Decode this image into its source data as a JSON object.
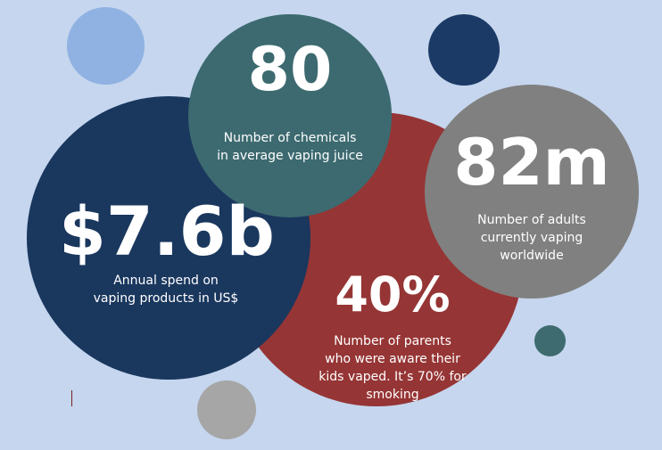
{
  "colors": {
    "background": "#c5d6ee",
    "navy": "#1a375e",
    "teal": "#3c6a70",
    "red": "#963535",
    "gray": "#808080",
    "light_blue": "#8fb2e2",
    "light_gray": "#a6a6a6",
    "text": "#ffffff"
  },
  "stats": {
    "chemicals": {
      "value": "80",
      "label_line1": "Number of chemicals",
      "label_line2": "in average vaping juice"
    },
    "adults": {
      "value": "82m",
      "label_line1": "Number of adults",
      "label_line2": "currently vaping",
      "label_line3": "worldwide"
    },
    "spend": {
      "value": "$7.6b",
      "label_line1": "Annual spend on",
      "label_line2": "vaping products  in US$"
    },
    "parents": {
      "value": "40%",
      "label_line1": "Number of parents",
      "label_line2": "who were aware their",
      "label_line3": "kids vaped. It’s 70% for",
      "label_line4": "smoking"
    }
  }
}
